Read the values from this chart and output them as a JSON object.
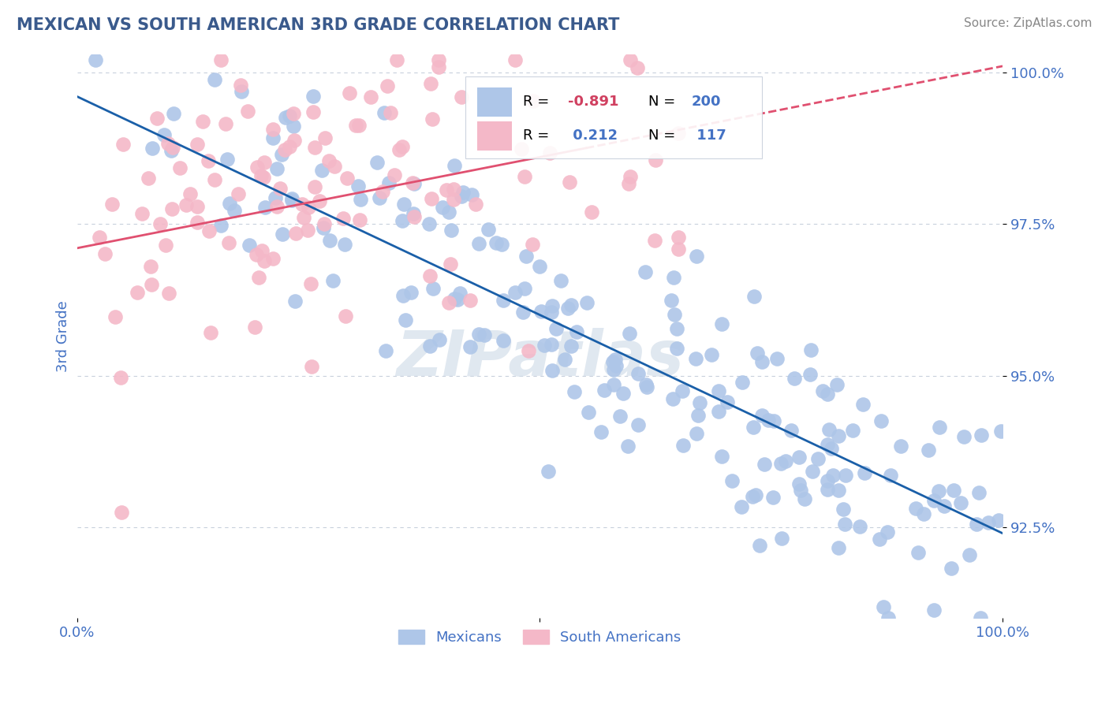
{
  "title": "MEXICAN VS SOUTH AMERICAN 3RD GRADE CORRELATION CHART",
  "source": "Source: ZipAtlas.com",
  "ylabel": "3rd Grade",
  "title_color": "#3a5a8c",
  "background_color": "#ffffff",
  "x_min": 0.0,
  "x_max": 1.0,
  "y_min": 0.91,
  "y_max": 1.003,
  "ytick_vals": [
    0.925,
    0.95,
    0.975,
    1.0
  ],
  "ytick_labels": [
    "92.5%",
    "95.0%",
    "97.5%",
    "100.0%"
  ],
  "blue_R": -0.891,
  "blue_N": 200,
  "pink_R": 0.212,
  "pink_N": 117,
  "blue_color": "#aec6e8",
  "blue_line_color": "#1a5fa8",
  "pink_color": "#f4b8c8",
  "pink_line_color": "#e05070",
  "tick_color": "#4472c4",
  "grid_color": "#c8d0dc",
  "blue_line_start_y": 0.996,
  "blue_line_end_y": 0.924,
  "pink_line_start_y": 0.971,
  "pink_line_end_y": 1.001
}
